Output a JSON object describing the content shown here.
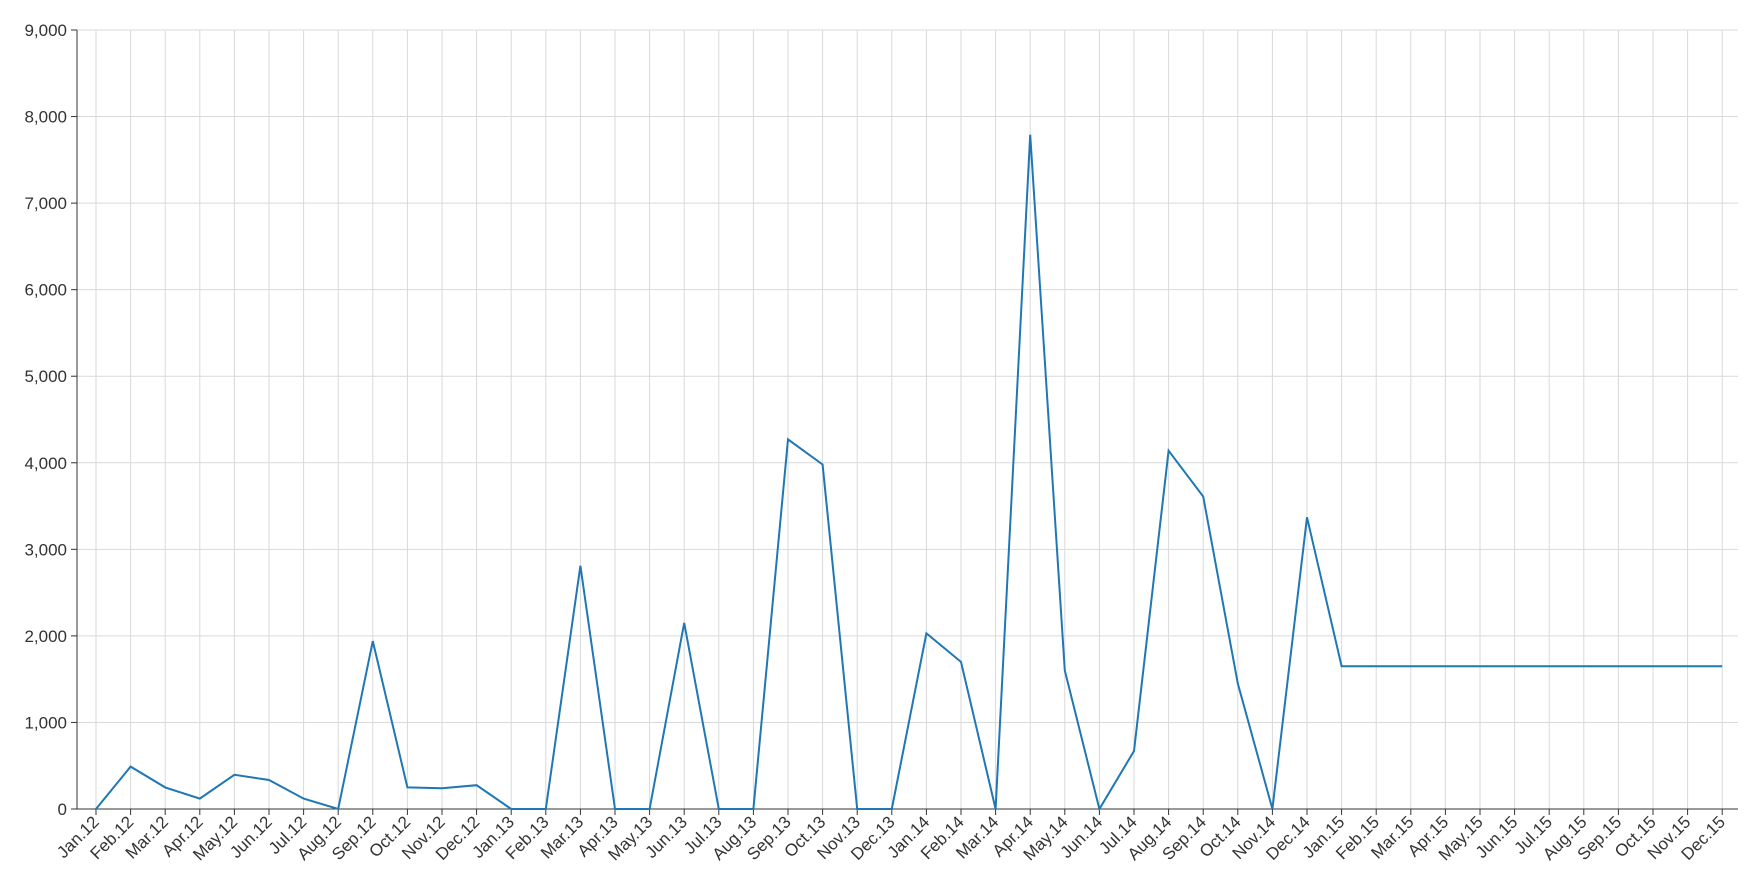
{
  "chart_data": {
    "type": "line",
    "title": "",
    "xlabel": "",
    "ylabel": "",
    "categories": [
      "Jan.12",
      "Feb.12",
      "Mar.12",
      "Apr.12",
      "May.12",
      "Jun.12",
      "Jul.12",
      "Aug.12",
      "Sep.12",
      "Oct.12",
      "Nov.12",
      "Dec.12",
      "Jan.13",
      "Feb.13",
      "Mar.13",
      "Apr.13",
      "May.13",
      "Jun.13",
      "Jul.13",
      "Aug.13",
      "Sep.13",
      "Oct.13",
      "Nov.13",
      "Dec.13",
      "Jan.14",
      "Feb.14",
      "Mar.14",
      "Apr.14",
      "May.14",
      "Jun.14",
      "Jul.14",
      "Aug.14",
      "Sep.14",
      "Oct.14",
      "Nov.14",
      "Dec.14",
      "Jan.15",
      "Feb.15",
      "Mar.15",
      "Apr.15",
      "May.15",
      "Jun.15",
      "Jul.15",
      "Aug.15",
      "Sep.15",
      "Oct.15",
      "Nov.15",
      "Dec.15"
    ],
    "series": [
      {
        "color": "#1f77b4",
        "values": [
          0,
          490,
          250,
          120,
          395,
          335,
          120,
          0,
          1940,
          250,
          240,
          275,
          0,
          0,
          2810,
          0,
          0,
          2150,
          0,
          0,
          4270,
          3980,
          0,
          0,
          2030,
          1700,
          0,
          7790,
          1600,
          0,
          670,
          4140,
          3610,
          1450,
          0,
          3370,
          1650,
          1650,
          1650,
          1650,
          1650,
          1650,
          1650,
          1650,
          1650,
          1650,
          1650,
          1650
        ]
      }
    ],
    "ylim": [
      0,
      9000
    ],
    "yticks": [
      0,
      1000,
      2000,
      3000,
      4000,
      5000,
      6000,
      7000,
      8000,
      9000
    ],
    "ytick_labels": [
      "0",
      "1,000",
      "2,000",
      "3,000",
      "4,000",
      "5,000",
      "6,000",
      "7,000",
      "8,000",
      "9,000"
    ],
    "grid": true,
    "legend": "none"
  }
}
